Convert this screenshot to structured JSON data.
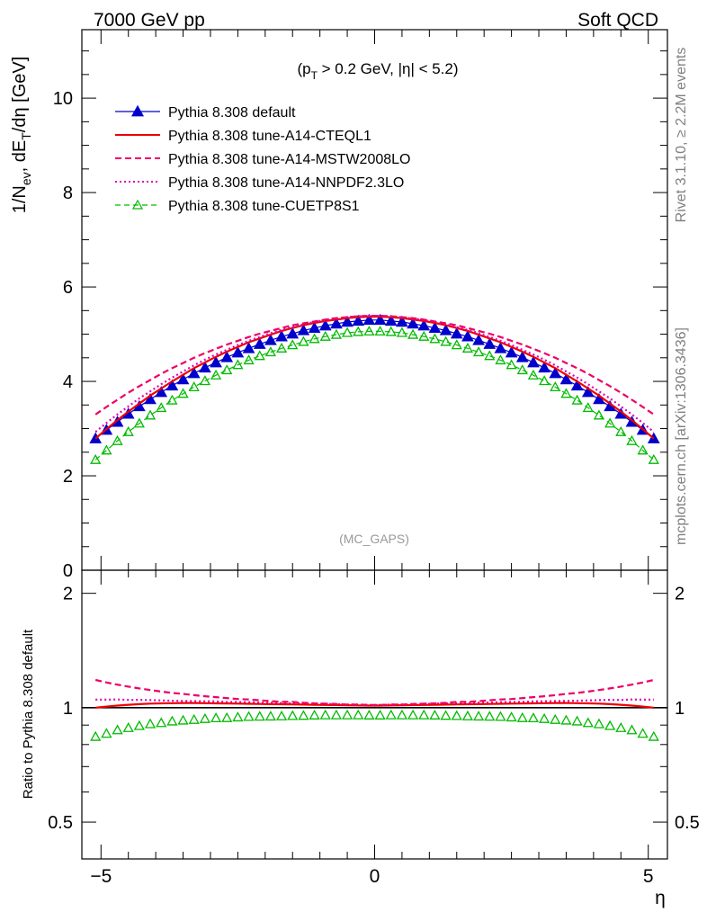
{
  "header": {
    "left": "7000 GeV pp",
    "right": "Soft QCD"
  },
  "annotations": {
    "cut": "(p_T > 0.2 GeV, |η| < 5.2)",
    "analysis": "(MC_GAPS)",
    "rivet": "Rivet 3.1.10, ≥ 2.2M events",
    "source": "mcplots.cern.ch [arXiv:1306.3436]"
  },
  "chart_data": [
    {
      "type": "line",
      "panel": "main",
      "ylabel": "1/N_ev, dE_T/dη [GeV]",
      "xlim": [
        -5.35,
        5.35
      ],
      "ylim": [
        0,
        11.45
      ],
      "y_ticks": [
        0,
        2,
        4,
        6,
        8,
        10
      ],
      "grid": false,
      "legend_position": "top-left",
      "x": [
        -5.1,
        -4.9,
        -4.7,
        -4.5,
        -4.3,
        -4.1,
        -3.9,
        -3.7,
        -3.5,
        -3.3,
        -3.1,
        -2.9,
        -2.7,
        -2.5,
        -2.3,
        -2.1,
        -1.9,
        -1.7,
        -1.5,
        -1.3,
        -1.1,
        -0.9,
        -0.7,
        -0.5,
        -0.3,
        -0.1,
        0.1,
        0.3,
        0.5,
        0.7,
        0.9,
        1.1,
        1.3,
        1.5,
        1.7,
        1.9,
        2.1,
        2.3,
        2.5,
        2.7,
        2.9,
        3.1,
        3.3,
        3.5,
        3.7,
        3.9,
        4.1,
        4.3,
        4.5,
        4.7,
        4.9,
        5.1
      ],
      "series": [
        {
          "name": "Pythia 8.308 default",
          "color": "#0000cc",
          "style": "solid-filled-triangle",
          "values": [
            2.79,
            2.97,
            3.14,
            3.31,
            3.47,
            3.62,
            3.77,
            3.91,
            4.04,
            4.17,
            4.29,
            4.4,
            4.51,
            4.61,
            4.7,
            4.79,
            4.87,
            4.95,
            5.01,
            5.08,
            5.13,
            5.18,
            5.22,
            5.26,
            5.28,
            5.3,
            5.3,
            5.28,
            5.26,
            5.22,
            5.18,
            5.13,
            5.08,
            5.01,
            4.95,
            4.87,
            4.79,
            4.7,
            4.61,
            4.51,
            4.4,
            4.29,
            4.17,
            4.04,
            3.91,
            3.77,
            3.62,
            3.47,
            3.31,
            3.14,
            2.97,
            2.79
          ]
        },
        {
          "name": "Pythia 8.308 tune-A14-CTEQL1",
          "color": "#ee0000",
          "style": "solid",
          "values": [
            2.79,
            2.99,
            3.18,
            3.36,
            3.53,
            3.7,
            3.85,
            4.0,
            4.14,
            4.28,
            4.4,
            4.52,
            4.63,
            4.73,
            4.83,
            4.91,
            4.99,
            5.07,
            5.13,
            5.19,
            5.24,
            5.28,
            5.31,
            5.34,
            5.36,
            5.37,
            5.37,
            5.36,
            5.34,
            5.31,
            5.28,
            5.24,
            5.19,
            5.13,
            5.07,
            4.99,
            4.91,
            4.83,
            4.73,
            4.63,
            4.52,
            4.4,
            4.28,
            4.14,
            4.0,
            3.85,
            3.7,
            3.53,
            3.36,
            3.18,
            2.99,
            2.79
          ]
        },
        {
          "name": "Pythia 8.308 tune-A14-MSTW2008LO",
          "color": "#ee0066",
          "style": "dashed",
          "values": [
            3.3,
            3.46,
            3.61,
            3.76,
            3.9,
            4.03,
            4.16,
            4.28,
            4.39,
            4.5,
            4.6,
            4.69,
            4.78,
            4.86,
            4.94,
            5.01,
            5.07,
            5.13,
            5.19,
            5.23,
            5.27,
            5.31,
            5.34,
            5.36,
            5.38,
            5.39,
            5.39,
            5.38,
            5.36,
            5.34,
            5.31,
            5.27,
            5.23,
            5.19,
            5.13,
            5.07,
            5.01,
            4.94,
            4.86,
            4.78,
            4.69,
            4.6,
            4.5,
            4.39,
            4.28,
            4.16,
            4.03,
            3.9,
            3.76,
            3.61,
            3.46,
            3.3
          ]
        },
        {
          "name": "Pythia 8.308 tune-A14-NNPDF2.3LO",
          "color": "#dd00bb",
          "style": "dotted",
          "values": [
            2.93,
            3.12,
            3.3,
            3.47,
            3.64,
            3.79,
            3.94,
            4.08,
            4.21,
            4.34,
            4.46,
            4.57,
            4.67,
            4.77,
            4.86,
            4.94,
            5.02,
            5.09,
            5.15,
            5.21,
            5.26,
            5.3,
            5.33,
            5.36,
            5.38,
            5.39,
            5.39,
            5.38,
            5.36,
            5.33,
            5.3,
            5.26,
            5.21,
            5.15,
            5.09,
            5.02,
            4.94,
            4.86,
            4.77,
            4.67,
            4.57,
            4.46,
            4.34,
            4.21,
            4.08,
            3.94,
            3.79,
            3.64,
            3.47,
            3.3,
            3.12,
            2.93
          ]
        },
        {
          "name": "Pythia 8.308 tune-CUETP8S1",
          "color": "#00bb00",
          "style": "dashed-open-triangle",
          "values": [
            2.34,
            2.54,
            2.74,
            2.93,
            3.11,
            3.28,
            3.44,
            3.6,
            3.74,
            3.88,
            4.01,
            4.13,
            4.24,
            4.35,
            4.45,
            4.54,
            4.62,
            4.7,
            4.77,
            4.84,
            4.9,
            4.95,
            4.99,
            5.03,
            5.05,
            5.06,
            5.06,
            5.05,
            5.03,
            4.99,
            4.95,
            4.9,
            4.84,
            4.77,
            4.7,
            4.62,
            4.54,
            4.45,
            4.35,
            4.24,
            4.13,
            4.01,
            3.88,
            3.74,
            3.6,
            3.44,
            3.28,
            3.11,
            2.93,
            2.74,
            2.54,
            2.34
          ]
        }
      ]
    },
    {
      "type": "line",
      "panel": "ratio",
      "xlabel": "η",
      "ylabel": "Ratio to Pythia 8.308 default",
      "xlim": [
        -5.35,
        5.35
      ],
      "ylim": [
        0.4,
        2.3
      ],
      "y_scale": "log",
      "y_ticks": [
        0.5,
        1,
        2
      ],
      "x_ticks": [
        -5,
        0,
        5
      ],
      "x": [
        -5.1,
        -4.9,
        -4.7,
        -4.5,
        -4.3,
        -4.1,
        -3.9,
        -3.7,
        -3.5,
        -3.3,
        -3.1,
        -2.9,
        -2.7,
        -2.5,
        -2.3,
        -2.1,
        -1.9,
        -1.7,
        -1.5,
        -1.3,
        -1.1,
        -0.9,
        -0.7,
        -0.5,
        -0.3,
        -0.1,
        0.1,
        0.3,
        0.5,
        0.7,
        0.9,
        1.1,
        1.3,
        1.5,
        1.7,
        1.9,
        2.1,
        2.3,
        2.5,
        2.7,
        2.9,
        3.1,
        3.3,
        3.5,
        3.7,
        3.9,
        4.1,
        4.3,
        4.5,
        4.7,
        4.9,
        5.1
      ],
      "series": [
        {
          "name": "Pythia 8.308 default",
          "color": "#000000",
          "style": "reference",
          "values": [
            1,
            1,
            1,
            1,
            1,
            1,
            1,
            1,
            1,
            1,
            1,
            1,
            1,
            1,
            1,
            1,
            1,
            1,
            1,
            1,
            1,
            1,
            1,
            1,
            1,
            1,
            1,
            1,
            1,
            1,
            1,
            1,
            1,
            1,
            1,
            1,
            1,
            1,
            1,
            1,
            1,
            1,
            1,
            1,
            1,
            1,
            1,
            1,
            1,
            1,
            1,
            1
          ]
        },
        {
          "name": "Pythia 8.308 tune-A14-CTEQL1",
          "color": "#ee0000",
          "style": "solid",
          "values": [
            1.0,
            1.007,
            1.013,
            1.018,
            1.022,
            1.025,
            1.027,
            1.028,
            1.029,
            1.029,
            1.028,
            1.027,
            1.026,
            1.025,
            1.024,
            1.023,
            1.022,
            1.021,
            1.02,
            1.019,
            1.018,
            1.017,
            1.016,
            1.015,
            1.014,
            1.013,
            1.013,
            1.014,
            1.015,
            1.016,
            1.017,
            1.018,
            1.019,
            1.02,
            1.021,
            1.022,
            1.023,
            1.024,
            1.025,
            1.026,
            1.027,
            1.028,
            1.029,
            1.029,
            1.028,
            1.027,
            1.025,
            1.022,
            1.018,
            1.013,
            1.007,
            1.0
          ]
        },
        {
          "name": "Pythia 8.308 tune-A14-MSTW2008LO",
          "color": "#ee0066",
          "style": "dashed",
          "values": [
            1.183,
            1.165,
            1.15,
            1.136,
            1.124,
            1.113,
            1.103,
            1.094,
            1.087,
            1.079,
            1.072,
            1.066,
            1.06,
            1.054,
            1.051,
            1.046,
            1.041,
            1.036,
            1.036,
            1.03,
            1.027,
            1.025,
            1.023,
            1.019,
            1.019,
            1.017,
            1.017,
            1.019,
            1.019,
            1.023,
            1.025,
            1.027,
            1.03,
            1.036,
            1.036,
            1.041,
            1.046,
            1.051,
            1.054,
            1.06,
            1.066,
            1.072,
            1.079,
            1.087,
            1.094,
            1.103,
            1.113,
            1.124,
            1.136,
            1.15,
            1.165,
            1.183
          ]
        },
        {
          "name": "Pythia 8.308 tune-A14-NNPDF2.3LO",
          "color": "#dd00bb",
          "style": "dotted",
          "values": [
            1.05,
            1.05,
            1.051,
            1.048,
            1.049,
            1.047,
            1.045,
            1.043,
            1.042,
            1.041,
            1.04,
            1.039,
            1.035,
            1.035,
            1.034,
            1.031,
            1.031,
            1.028,
            1.028,
            1.026,
            1.025,
            1.023,
            1.021,
            1.019,
            1.019,
            1.017,
            1.017,
            1.019,
            1.019,
            1.021,
            1.023,
            1.025,
            1.026,
            1.028,
            1.028,
            1.031,
            1.031,
            1.034,
            1.035,
            1.035,
            1.039,
            1.04,
            1.041,
            1.042,
            1.043,
            1.045,
            1.047,
            1.049,
            1.048,
            1.051,
            1.05,
            1.05
          ]
        },
        {
          "name": "Pythia 8.308 tune-CUETP8S1",
          "color": "#00bb00",
          "style": "open-triangle",
          "values": [
            0.839,
            0.855,
            0.873,
            0.885,
            0.896,
            0.906,
            0.912,
            0.921,
            0.926,
            0.93,
            0.935,
            0.939,
            0.94,
            0.944,
            0.947,
            0.948,
            0.949,
            0.95,
            0.952,
            0.953,
            0.955,
            0.956,
            0.956,
            0.956,
            0.956,
            0.955,
            0.955,
            0.956,
            0.956,
            0.956,
            0.956,
            0.955,
            0.953,
            0.952,
            0.95,
            0.949,
            0.948,
            0.947,
            0.944,
            0.94,
            0.939,
            0.935,
            0.93,
            0.926,
            0.921,
            0.912,
            0.906,
            0.896,
            0.885,
            0.873,
            0.855,
            0.839
          ]
        }
      ]
    }
  ]
}
